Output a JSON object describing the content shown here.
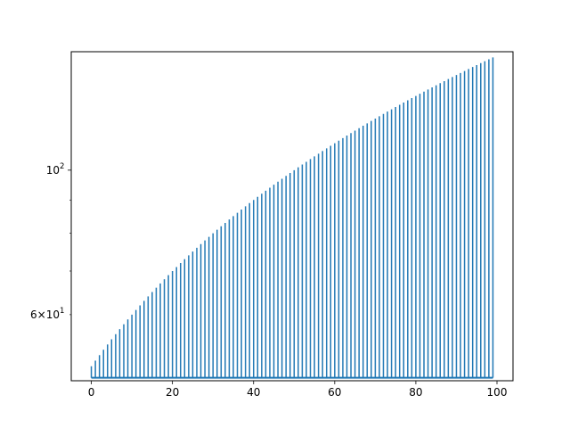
{
  "chart_data": {
    "type": "stem",
    "title": "",
    "xlabel": "",
    "ylabel": "",
    "y_scale": "log",
    "grid": false,
    "legend": "none",
    "color": "#1f77b4",
    "baseline": 48,
    "x_start": 0,
    "x_end": 99,
    "x_step": 1,
    "y_formula": "50 + x",
    "xlim": [
      -4.95,
      103.95
    ],
    "ylim": [
      47.5,
      152
    ],
    "x_ticks": [
      {
        "value": 0,
        "label": "0"
      },
      {
        "value": 20,
        "label": "20"
      },
      {
        "value": 40,
        "label": "40"
      },
      {
        "value": 60,
        "label": "60"
      },
      {
        "value": 80,
        "label": "80"
      },
      {
        "value": 100,
        "label": "100"
      }
    ],
    "y_major_ticks": [
      {
        "value": 100,
        "base": "10",
        "exp": "2"
      }
    ],
    "y_minor_ticks": [
      {
        "value": 60,
        "prefix": "6×",
        "base": "10",
        "exp": "1"
      },
      {
        "value": 70,
        "label": ""
      },
      {
        "value": 80,
        "label": ""
      },
      {
        "value": 90,
        "label": ""
      }
    ]
  }
}
